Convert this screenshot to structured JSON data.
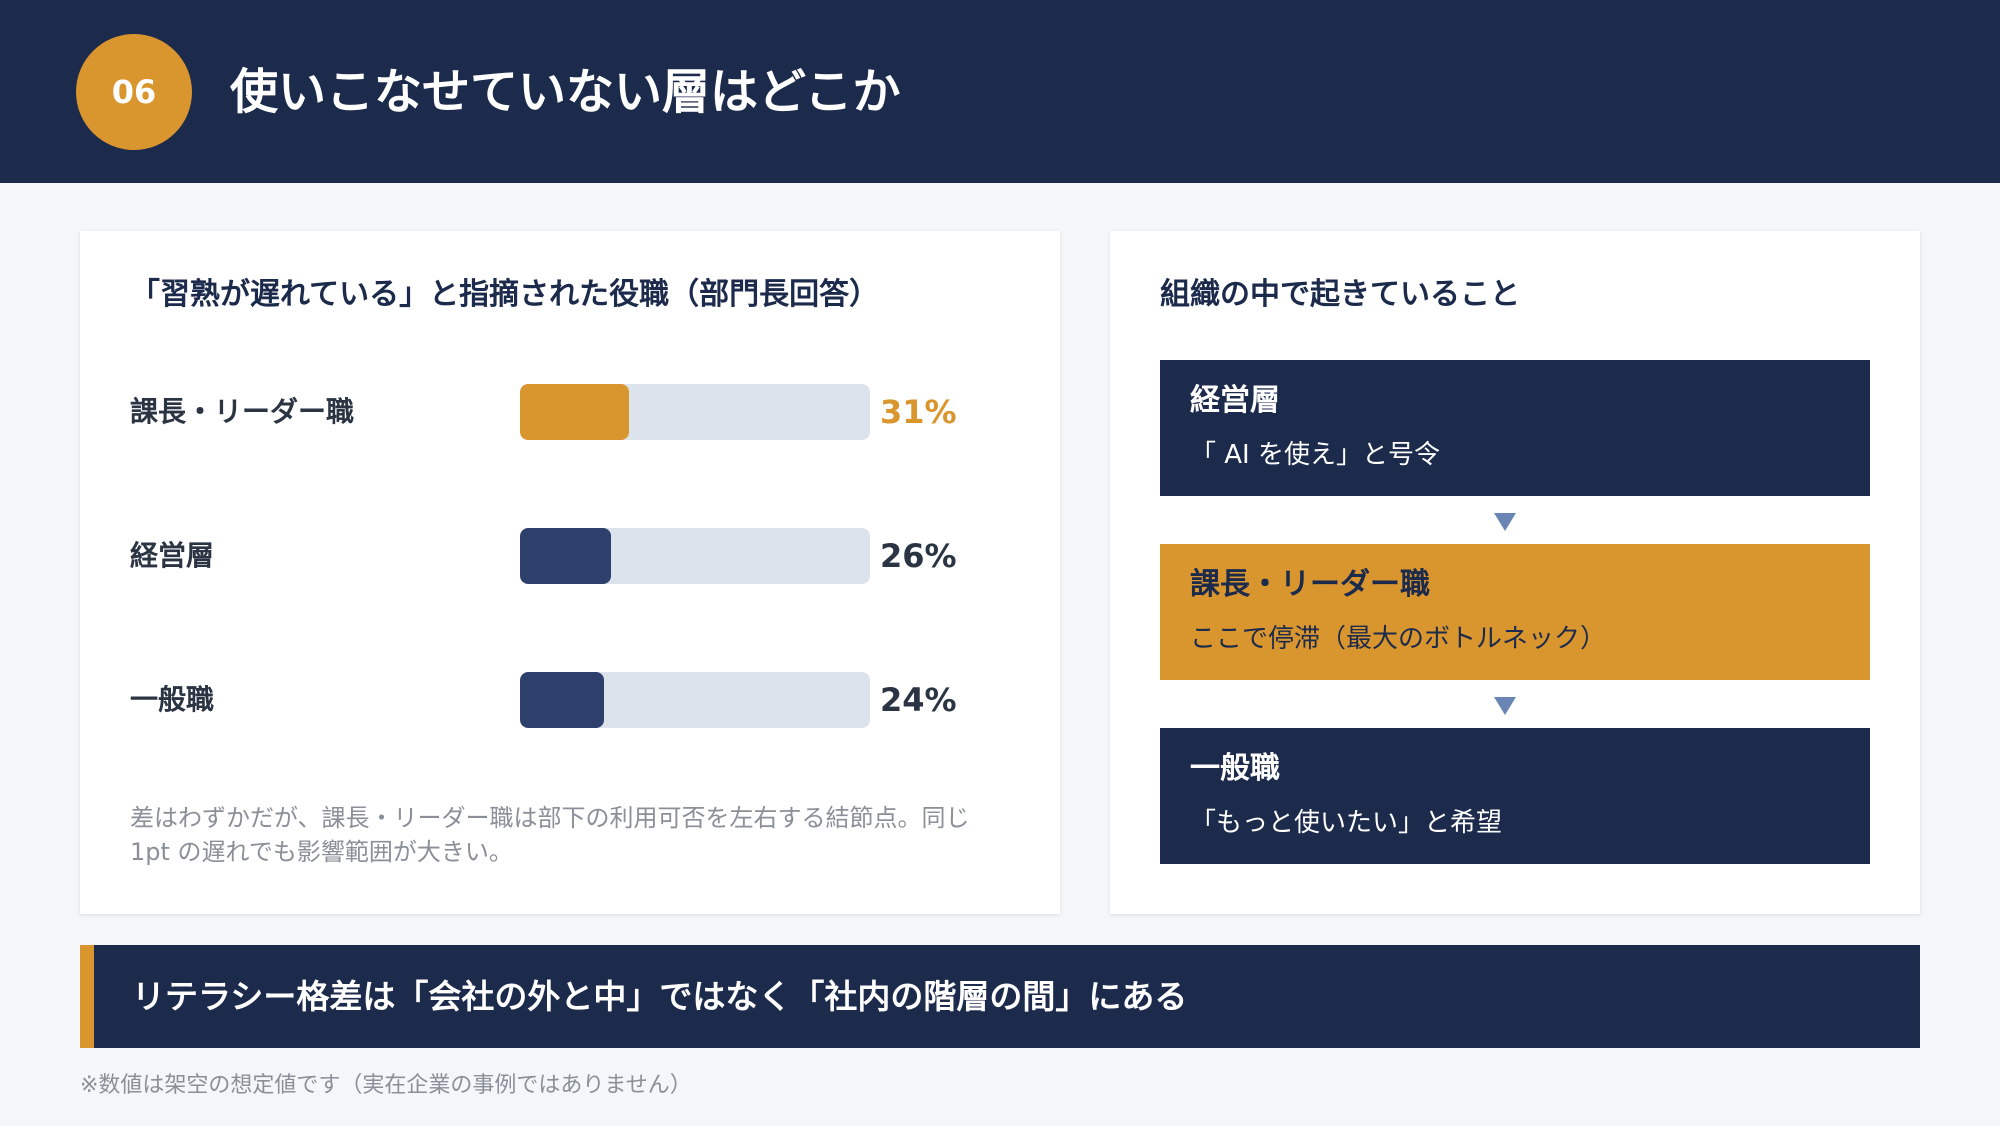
{
  "header": {
    "badge": "06",
    "title": "使いこなせていない層はどこか"
  },
  "chart_data": {
    "type": "bar",
    "title": "「習熟が遅れている」と指摘された役職（部門長回答）",
    "categories": [
      "課長・リーダー職",
      "経営層",
      "一般職"
    ],
    "values": [
      31,
      26,
      24
    ],
    "value_labels": [
      "31%",
      "26%",
      "24%"
    ],
    "unit": "%",
    "ylim": [
      0,
      100
    ],
    "colors": [
      "#d9952e",
      "#2e3f6b",
      "#2e3f6b"
    ],
    "value_colors": [
      "#d9952e",
      "#2b3443",
      "#2b3443"
    ],
    "track_color": "#dde3ed",
    "note": "差はわずかだが、課長・リーダー職は部下の利用可否を左右する結節点。同じ 1pt の遅れでも影響範囲が大きい。"
  },
  "flow": {
    "title": "組織の中で起きていること",
    "items": [
      {
        "heading": "経営層",
        "text": "「 AI を使え」と号令",
        "accent": false
      },
      {
        "heading": "課長・リーダー職",
        "text": "ここで停滞（最大のボトルネック）",
        "accent": true
      },
      {
        "heading": "一般職",
        "text": "「もっと使いたい」と希望",
        "accent": false
      }
    ],
    "arrow_icon": "triangle-down-icon"
  },
  "banner": {
    "text": "リテラシー格差は「会社の外と中」ではなく「社内の階層の間」にある"
  },
  "footnote": "※数値は架空の想定値です（実在企業の事例ではありません）",
  "colors": {
    "navy": "#1c2a4c",
    "gold": "#d9952e",
    "bar_navy": "#2e3f6b",
    "arrow": "#6b86b4",
    "background": "#f4f6f9"
  }
}
